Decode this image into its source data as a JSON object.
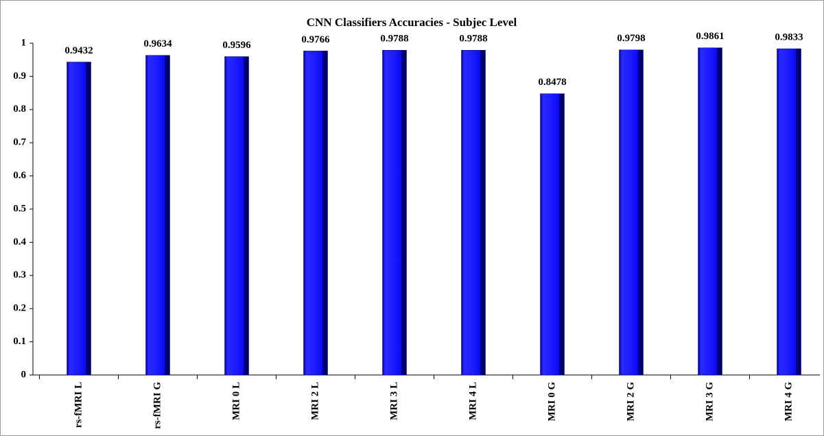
{
  "chart_data": {
    "type": "bar",
    "title": "CNN Classifiers Accuracies  - Subjec Level",
    "categories": [
      "rs-fMRI L",
      "rs-fMRI G",
      "MRI 0 L",
      "MRI 2 L",
      "MRI 3 L",
      "MRI 4 L",
      "MRI 0 G",
      "MRI 2 G",
      "MRI 3 G",
      "MRI 4 G"
    ],
    "values": [
      0.9432,
      0.9634,
      0.9596,
      0.9766,
      0.9788,
      0.9788,
      0.8478,
      0.9798,
      0.9861,
      0.9833
    ],
    "color": "#1414ff",
    "ylim": [
      0,
      1
    ],
    "yticks": [
      0,
      0.1,
      0.2,
      0.3,
      0.4,
      0.5,
      0.6,
      0.7,
      0.8,
      0.9,
      1
    ],
    "grid": false
  }
}
